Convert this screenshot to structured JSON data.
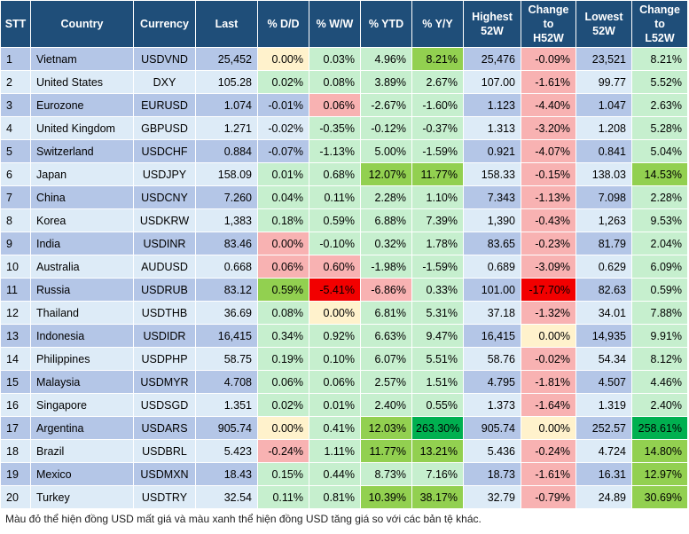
{
  "headers": {
    "stt": "STT",
    "country": "Country",
    "currency": "Currency",
    "last": "Last",
    "dd": "% D/D",
    "ww": "% W/W",
    "ytd": "% YTD",
    "yy": "% Y/Y",
    "high_l1": "Highest",
    "high_l2": "52W",
    "chh_l1": "Change",
    "chh_l2": "to",
    "chh_l3": "H52W",
    "low_l1": "Lowest",
    "low_l2": "52W",
    "chl_l1": "Change",
    "chl_l2": "to",
    "chl_l3": "L52W"
  },
  "colors": {
    "header_bg": "#1F4E79",
    "row_odd": "#B4C6E7",
    "row_even": "#DDEBF7",
    "yellow": "#FFF2CC",
    "light_green": "#C6EFCE",
    "green": "#92D050",
    "dark_green": "#00B050",
    "pink": "#F8B2B2",
    "red": "#FF2020"
  },
  "rows": [
    {
      "stt": "1",
      "country": "Vietnam",
      "currency": "USDVND",
      "last": "25,452",
      "dd": "0.00%",
      "ww": "0.03%",
      "ytd": "4.96%",
      "yy": "8.21%",
      "high": "25,476",
      "chh": "-0.09%",
      "low": "23,521",
      "chl": "8.21%"
    },
    {
      "stt": "2",
      "country": "United States",
      "currency": "DXY",
      "last": "105.28",
      "dd": "0.02%",
      "ww": "0.08%",
      "ytd": "3.89%",
      "yy": "2.67%",
      "high": "107.00",
      "chh": "-1.61%",
      "low": "99.77",
      "chl": "5.52%"
    },
    {
      "stt": "3",
      "country": "Eurozone",
      "currency": "EURUSD",
      "last": "1.074",
      "dd": "-0.01%",
      "ww": "0.06%",
      "ytd": "-2.67%",
      "yy": "-1.60%",
      "high": "1.123",
      "chh": "-4.40%",
      "low": "1.047",
      "chl": "2.63%"
    },
    {
      "stt": "4",
      "country": "United Kingdom",
      "currency": "GBPUSD",
      "last": "1.271",
      "dd": "-0.02%",
      "ww": "-0.35%",
      "ytd": "-0.12%",
      "yy": "-0.37%",
      "high": "1.313",
      "chh": "-3.20%",
      "low": "1.208",
      "chl": "5.28%"
    },
    {
      "stt": "5",
      "country": "Switzerland",
      "currency": "USDCHF",
      "last": "0.884",
      "dd": "-0.07%",
      "ww": "-1.13%",
      "ytd": "5.00%",
      "yy": "-1.59%",
      "high": "0.921",
      "chh": "-4.07%",
      "low": "0.841",
      "chl": "5.04%"
    },
    {
      "stt": "6",
      "country": "Japan",
      "currency": "USDJPY",
      "last": "158.09",
      "dd": "0.01%",
      "ww": "0.68%",
      "ytd": "12.07%",
      "yy": "11.77%",
      "high": "158.33",
      "chh": "-0.15%",
      "low": "138.03",
      "chl": "14.53%"
    },
    {
      "stt": "7",
      "country": "China",
      "currency": "USDCNY",
      "last": "7.260",
      "dd": "0.04%",
      "ww": "0.11%",
      "ytd": "2.28%",
      "yy": "1.10%",
      "high": "7.343",
      "chh": "-1.13%",
      "low": "7.098",
      "chl": "2.28%"
    },
    {
      "stt": "8",
      "country": "Korea",
      "currency": "USDKRW",
      "last": "1,383",
      "dd": "0.18%",
      "ww": "0.59%",
      "ytd": "6.88%",
      "yy": "7.39%",
      "high": "1,390",
      "chh": "-0.43%",
      "low": "1,263",
      "chl": "9.53%"
    },
    {
      "stt": "9",
      "country": "India",
      "currency": "USDINR",
      "last": "83.46",
      "dd": "0.00%",
      "ww": "-0.10%",
      "ytd": "0.32%",
      "yy": "1.78%",
      "high": "83.65",
      "chh": "-0.23%",
      "low": "81.79",
      "chl": "2.04%"
    },
    {
      "stt": "10",
      "country": "Australia",
      "currency": "AUDUSD",
      "last": "0.668",
      "dd": "0.06%",
      "ww": "0.60%",
      "ytd": "-1.98%",
      "yy": "-1.59%",
      "high": "0.689",
      "chh": "-3.09%",
      "low": "0.629",
      "chl": "6.09%"
    },
    {
      "stt": "11",
      "country": "Russia",
      "currency": "USDRUB",
      "last": "83.12",
      "dd": "0.59%",
      "ww": "-5.41%",
      "ytd": "-6.86%",
      "yy": "0.33%",
      "high": "101.00",
      "chh": "-17.70%",
      "low": "82.63",
      "chl": "0.59%"
    },
    {
      "stt": "12",
      "country": "Thailand",
      "currency": "USDTHB",
      "last": "36.69",
      "dd": "0.08%",
      "ww": "0.00%",
      "ytd": "6.81%",
      "yy": "5.31%",
      "high": "37.18",
      "chh": "-1.32%",
      "low": "34.01",
      "chl": "7.88%"
    },
    {
      "stt": "13",
      "country": "Indonesia",
      "currency": "USDIDR",
      "last": "16,415",
      "dd": "0.34%",
      "ww": "0.92%",
      "ytd": "6.63%",
      "yy": "9.47%",
      "high": "16,415",
      "chh": "0.00%",
      "low": "14,935",
      "chl": "9.91%"
    },
    {
      "stt": "14",
      "country": "Philippines",
      "currency": "USDPHP",
      "last": "58.75",
      "dd": "0.19%",
      "ww": "0.10%",
      "ytd": "6.07%",
      "yy": "5.51%",
      "high": "58.76",
      "chh": "-0.02%",
      "low": "54.34",
      "chl": "8.12%"
    },
    {
      "stt": "15",
      "country": "Malaysia",
      "currency": "USDMYR",
      "last": "4.708",
      "dd": "0.06%",
      "ww": "0.06%",
      "ytd": "2.57%",
      "yy": "1.51%",
      "high": "4.795",
      "chh": "-1.81%",
      "low": "4.507",
      "chl": "4.46%"
    },
    {
      "stt": "16",
      "country": "Singapore",
      "currency": "USDSGD",
      "last": "1.351",
      "dd": "0.02%",
      "ww": "0.01%",
      "ytd": "2.40%",
      "yy": "0.55%",
      "high": "1.373",
      "chh": "-1.64%",
      "low": "1.319",
      "chl": "2.40%"
    },
    {
      "stt": "17",
      "country": "Argentina",
      "currency": "USDARS",
      "last": "905.74",
      "dd": "0.00%",
      "ww": "0.41%",
      "ytd": "12.03%",
      "yy": "263.30%",
      "high": "905.74",
      "chh": "0.00%",
      "low": "252.57",
      "chl": "258.61%"
    },
    {
      "stt": "18",
      "country": "Brazil",
      "currency": "USDBRL",
      "last": "5.423",
      "dd": "-0.24%",
      "ww": "1.11%",
      "ytd": "11.77%",
      "yy": "13.21%",
      "high": "5.436",
      "chh": "-0.24%",
      "low": "4.724",
      "chl": "14.80%"
    },
    {
      "stt": "19",
      "country": "Mexico",
      "currency": "USDMXN",
      "last": "18.43",
      "dd": "0.15%",
      "ww": "0.44%",
      "ytd": "8.73%",
      "yy": "7.16%",
      "high": "18.73",
      "chh": "-1.61%",
      "low": "16.31",
      "chl": "12.97%"
    },
    {
      "stt": "20",
      "country": "Turkey",
      "currency": "USDTRY",
      "last": "32.54",
      "dd": "0.11%",
      "ww": "0.81%",
      "ytd": "10.39%",
      "yy": "38.17%",
      "high": "32.79",
      "chh": "-0.79%",
      "low": "24.89",
      "chl": "30.69%"
    }
  ],
  "highlights": [
    {
      "row": 0,
      "col": "dd",
      "style": "yellow"
    },
    {
      "row": 0,
      "col": "ww",
      "style": "lgreen"
    },
    {
      "row": 0,
      "col": "ytd",
      "style": "lgreen"
    },
    {
      "row": 0,
      "col": "yy",
      "style": "green"
    },
    {
      "row": 0,
      "col": "chh",
      "style": "pink"
    },
    {
      "row": 0,
      "col": "chl",
      "style": "lgreen"
    },
    {
      "row": 1,
      "col": "dd",
      "style": "lgreen"
    },
    {
      "row": 1,
      "col": "ww",
      "style": "lgreen"
    },
    {
      "row": 1,
      "col": "ytd",
      "style": "lgreen"
    },
    {
      "row": 1,
      "col": "yy",
      "style": "lgreen"
    },
    {
      "row": 1,
      "col": "chh",
      "style": "pink"
    },
    {
      "row": 1,
      "col": "chl",
      "style": "lgreen"
    },
    {
      "row": 2,
      "col": "ww",
      "style": "pink"
    },
    {
      "row": 2,
      "col": "ytd",
      "style": "lgreen"
    },
    {
      "row": 2,
      "col": "yy",
      "style": "lgreen"
    },
    {
      "row": 2,
      "col": "chh",
      "style": "pink"
    },
    {
      "row": 2,
      "col": "chl",
      "style": "lgreen"
    },
    {
      "row": 3,
      "col": "ww",
      "style": "lgreen"
    },
    {
      "row": 3,
      "col": "ytd",
      "style": "lgreen"
    },
    {
      "row": 3,
      "col": "yy",
      "style": "lgreen"
    },
    {
      "row": 3,
      "col": "chh",
      "style": "pink"
    },
    {
      "row": 3,
      "col": "chl",
      "style": "lgreen"
    },
    {
      "row": 4,
      "col": "ww",
      "style": "lgreen"
    },
    {
      "row": 4,
      "col": "ytd",
      "style": "lgreen"
    },
    {
      "row": 4,
      "col": "yy",
      "style": "lgreen"
    },
    {
      "row": 4,
      "col": "chh",
      "style": "pink"
    },
    {
      "row": 4,
      "col": "chl",
      "style": "lgreen"
    },
    {
      "row": 5,
      "col": "dd",
      "style": "lgreen"
    },
    {
      "row": 5,
      "col": "ww",
      "style": "lgreen"
    },
    {
      "row": 5,
      "col": "ytd",
      "style": "green"
    },
    {
      "row": 5,
      "col": "yy",
      "style": "green"
    },
    {
      "row": 5,
      "col": "chh",
      "style": "pink"
    },
    {
      "row": 5,
      "col": "chl",
      "style": "green"
    },
    {
      "row": 6,
      "col": "dd",
      "style": "lgreen"
    },
    {
      "row": 6,
      "col": "ww",
      "style": "lgreen"
    },
    {
      "row": 6,
      "col": "ytd",
      "style": "lgreen"
    },
    {
      "row": 6,
      "col": "yy",
      "style": "lgreen"
    },
    {
      "row": 6,
      "col": "chh",
      "style": "pink"
    },
    {
      "row": 6,
      "col": "chl",
      "style": "lgreen"
    },
    {
      "row": 7,
      "col": "dd",
      "style": "lgreen"
    },
    {
      "row": 7,
      "col": "ww",
      "style": "lgreen"
    },
    {
      "row": 7,
      "col": "ytd",
      "style": "lgreen"
    },
    {
      "row": 7,
      "col": "yy",
      "style": "lgreen"
    },
    {
      "row": 7,
      "col": "chh",
      "style": "pink"
    },
    {
      "row": 7,
      "col": "chl",
      "style": "lgreen"
    },
    {
      "row": 8,
      "col": "dd",
      "style": "pink"
    },
    {
      "row": 8,
      "col": "ww",
      "style": "lgreen"
    },
    {
      "row": 8,
      "col": "ytd",
      "style": "lgreen"
    },
    {
      "row": 8,
      "col": "yy",
      "style": "lgreen"
    },
    {
      "row": 8,
      "col": "chh",
      "style": "pink"
    },
    {
      "row": 8,
      "col": "chl",
      "style": "lgreen"
    },
    {
      "row": 9,
      "col": "dd",
      "style": "pink"
    },
    {
      "row": 9,
      "col": "ww",
      "style": "pink"
    },
    {
      "row": 9,
      "col": "ytd",
      "style": "lgreen"
    },
    {
      "row": 9,
      "col": "yy",
      "style": "lgreen"
    },
    {
      "row": 9,
      "col": "chh",
      "style": "pink"
    },
    {
      "row": 9,
      "col": "chl",
      "style": "lgreen"
    },
    {
      "row": 10,
      "col": "dd",
      "style": "green"
    },
    {
      "row": 10,
      "col": "ww",
      "style": "red2"
    },
    {
      "row": 10,
      "col": "ytd",
      "style": "pink"
    },
    {
      "row": 10,
      "col": "yy",
      "style": "lgreen"
    },
    {
      "row": 10,
      "col": "chh",
      "style": "red2"
    },
    {
      "row": 10,
      "col": "chl",
      "style": "lgreen"
    },
    {
      "row": 11,
      "col": "dd",
      "style": "lgreen"
    },
    {
      "row": 11,
      "col": "ww",
      "style": "yellow"
    },
    {
      "row": 11,
      "col": "ytd",
      "style": "lgreen"
    },
    {
      "row": 11,
      "col": "yy",
      "style": "lgreen"
    },
    {
      "row": 11,
      "col": "chh",
      "style": "pink"
    },
    {
      "row": 11,
      "col": "chl",
      "style": "lgreen"
    },
    {
      "row": 12,
      "col": "dd",
      "style": "lgreen"
    },
    {
      "row": 12,
      "col": "ww",
      "style": "lgreen"
    },
    {
      "row": 12,
      "col": "ytd",
      "style": "lgreen"
    },
    {
      "row": 12,
      "col": "yy",
      "style": "lgreen"
    },
    {
      "row": 12,
      "col": "chh",
      "style": "yellow"
    },
    {
      "row": 12,
      "col": "chl",
      "style": "lgreen"
    },
    {
      "row": 13,
      "col": "dd",
      "style": "lgreen"
    },
    {
      "row": 13,
      "col": "ww",
      "style": "lgreen"
    },
    {
      "row": 13,
      "col": "ytd",
      "style": "lgreen"
    },
    {
      "row": 13,
      "col": "yy",
      "style": "lgreen"
    },
    {
      "row": 13,
      "col": "chh",
      "style": "pink"
    },
    {
      "row": 13,
      "col": "chl",
      "style": "lgreen"
    },
    {
      "row": 14,
      "col": "dd",
      "style": "lgreen"
    },
    {
      "row": 14,
      "col": "ww",
      "style": "lgreen"
    },
    {
      "row": 14,
      "col": "ytd",
      "style": "lgreen"
    },
    {
      "row": 14,
      "col": "yy",
      "style": "lgreen"
    },
    {
      "row": 14,
      "col": "chh",
      "style": "pink"
    },
    {
      "row": 14,
      "col": "chl",
      "style": "lgreen"
    },
    {
      "row": 15,
      "col": "dd",
      "style": "lgreen"
    },
    {
      "row": 15,
      "col": "ww",
      "style": "lgreen"
    },
    {
      "row": 15,
      "col": "ytd",
      "style": "lgreen"
    },
    {
      "row": 15,
      "col": "yy",
      "style": "lgreen"
    },
    {
      "row": 15,
      "col": "chh",
      "style": "pink"
    },
    {
      "row": 15,
      "col": "chl",
      "style": "lgreen"
    },
    {
      "row": 16,
      "col": "dd",
      "style": "yellow"
    },
    {
      "row": 16,
      "col": "ww",
      "style": "lgreen"
    },
    {
      "row": 16,
      "col": "ytd",
      "style": "green"
    },
    {
      "row": 16,
      "col": "yy",
      "style": "dgreen"
    },
    {
      "row": 16,
      "col": "chh",
      "style": "yellow"
    },
    {
      "row": 16,
      "col": "chl",
      "style": "dgreen"
    },
    {
      "row": 17,
      "col": "dd",
      "style": "pink"
    },
    {
      "row": 17,
      "col": "ww",
      "style": "lgreen"
    },
    {
      "row": 17,
      "col": "ytd",
      "style": "green"
    },
    {
      "row": 17,
      "col": "yy",
      "style": "green"
    },
    {
      "row": 17,
      "col": "chh",
      "style": "pink"
    },
    {
      "row": 17,
      "col": "chl",
      "style": "green"
    },
    {
      "row": 18,
      "col": "dd",
      "style": "lgreen"
    },
    {
      "row": 18,
      "col": "ww",
      "style": "lgreen"
    },
    {
      "row": 18,
      "col": "ytd",
      "style": "lgreen"
    },
    {
      "row": 18,
      "col": "yy",
      "style": "lgreen"
    },
    {
      "row": 18,
      "col": "chh",
      "style": "pink"
    },
    {
      "row": 18,
      "col": "chl",
      "style": "green"
    },
    {
      "row": 19,
      "col": "dd",
      "style": "lgreen"
    },
    {
      "row": 19,
      "col": "ww",
      "style": "lgreen"
    },
    {
      "row": 19,
      "col": "ytd",
      "style": "green"
    },
    {
      "row": 19,
      "col": "yy",
      "style": "green"
    },
    {
      "row": 19,
      "col": "chh",
      "style": "pink"
    },
    {
      "row": 19,
      "col": "chl",
      "style": "green"
    }
  ],
  "footnote": "Màu đỏ thể hiện đồng USD mất giá và màu xanh thể hiện đồng USD tăng giá so với các bản tệ khác."
}
